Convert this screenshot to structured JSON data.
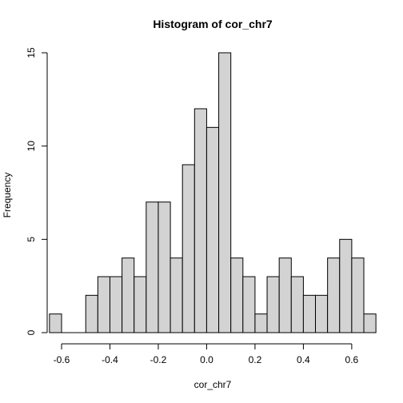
{
  "chart_data": {
    "type": "bar",
    "title": "Histogram of cor_chr7",
    "xlabel": "cor_chr7",
    "ylabel": "Frequency",
    "bin_width": 0.05,
    "bin_starts": [
      -0.65,
      -0.6,
      -0.55,
      -0.5,
      -0.45,
      -0.4,
      -0.35,
      -0.3,
      -0.25,
      -0.2,
      -0.15,
      -0.1,
      -0.05,
      0.0,
      0.05,
      0.1,
      0.15,
      0.2,
      0.25,
      0.3,
      0.35,
      0.4,
      0.45,
      0.5,
      0.55,
      0.6,
      0.65
    ],
    "values": [
      1,
      0,
      0,
      2,
      3,
      3,
      4,
      3,
      7,
      7,
      4,
      9,
      12,
      11,
      15,
      4,
      3,
      1,
      3,
      4,
      3,
      2,
      2,
      4,
      5,
      4,
      1
    ],
    "xlim": [
      -0.65,
      0.7
    ],
    "ylim": [
      0,
      15
    ],
    "x_ticks": [
      -0.6,
      -0.4,
      -0.2,
      0.0,
      0.2,
      0.4,
      0.6
    ],
    "x_tick_labels": [
      "-0.6",
      "-0.4",
      "-0.2",
      "0.0",
      "0.2",
      "0.4",
      "0.6"
    ],
    "y_ticks": [
      0,
      5,
      10,
      15
    ],
    "y_tick_labels": [
      "0",
      "5",
      "10",
      "15"
    ],
    "bar_color": "#d3d3d3",
    "grid": false
  }
}
